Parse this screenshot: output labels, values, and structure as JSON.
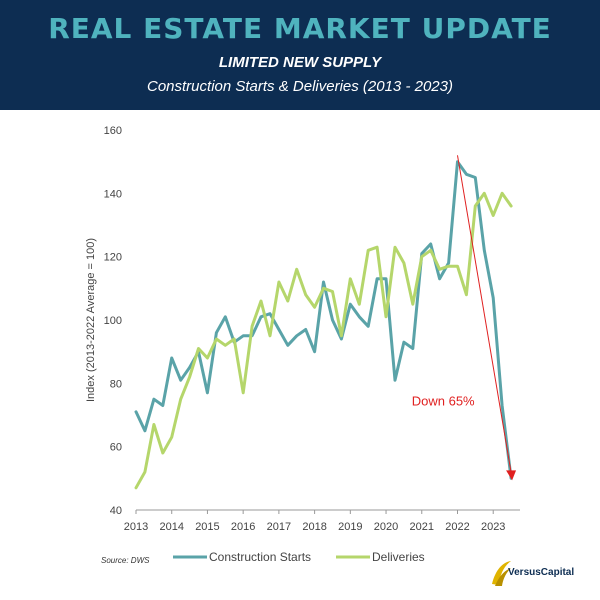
{
  "header": {
    "title": "REAL ESTATE MARKET UPDATE",
    "subtitle": "LIMITED NEW SUPPLY",
    "subtitle2": "Construction Starts & Deliveries (2013 - 2023)"
  },
  "footer": {
    "source": "Source: DWS",
    "logo_text": "VersusCapital"
  },
  "colors": {
    "header_bg": "#0d2d52",
    "title": "#4fb3be",
    "starts": "#5aa3a8",
    "deliveries": "#b5d66b",
    "arrow": "#e02020"
  },
  "chart_data": {
    "type": "line",
    "xlabel": "",
    "ylabel": "Index (2013-2022 Average = 100)",
    "ylim": [
      40,
      160
    ],
    "xlim": [
      2013,
      2023.75
    ],
    "yticks": [
      40,
      60,
      80,
      100,
      120,
      140,
      160
    ],
    "xticks": [
      2013,
      2014,
      2015,
      2016,
      2017,
      2018,
      2019,
      2020,
      2021,
      2022,
      2023
    ],
    "grid": false,
    "legend": "bottom",
    "annotation": {
      "text": "Down 65%",
      "from": [
        2022.0,
        152
      ],
      "to": [
        2023.5,
        50
      ]
    },
    "series": [
      {
        "name": "Construction Starts",
        "x": [
          2013.0,
          2013.25,
          2013.5,
          2013.75,
          2014.0,
          2014.25,
          2014.5,
          2014.75,
          2015.0,
          2015.25,
          2015.5,
          2015.75,
          2016.0,
          2016.25,
          2016.5,
          2016.75,
          2017.0,
          2017.25,
          2017.5,
          2017.75,
          2018.0,
          2018.25,
          2018.5,
          2018.75,
          2019.0,
          2019.25,
          2019.5,
          2019.75,
          2020.0,
          2020.25,
          2020.5,
          2020.75,
          2021.0,
          2021.25,
          2021.5,
          2021.75,
          2022.0,
          2022.25,
          2022.5,
          2022.75,
          2023.0,
          2023.25,
          2023.5
        ],
        "values": [
          71,
          65,
          75,
          73,
          88,
          81,
          85,
          90,
          77,
          96,
          101,
          93,
          95,
          95,
          101,
          102,
          97,
          92,
          95,
          97,
          90,
          112,
          100,
          94,
          105,
          101,
          98,
          113,
          113,
          81,
          93,
          91,
          121,
          124,
          113,
          118,
          150,
          146,
          145,
          122,
          107,
          73,
          50
        ]
      },
      {
        "name": "Deliveries",
        "x": [
          2013.0,
          2013.25,
          2013.5,
          2013.75,
          2014.0,
          2014.25,
          2014.5,
          2014.75,
          2015.0,
          2015.25,
          2015.5,
          2015.75,
          2016.0,
          2016.25,
          2016.5,
          2016.75,
          2017.0,
          2017.25,
          2017.5,
          2017.75,
          2018.0,
          2018.25,
          2018.5,
          2018.75,
          2019.0,
          2019.25,
          2019.5,
          2019.75,
          2020.0,
          2020.25,
          2020.5,
          2020.75,
          2021.0,
          2021.25,
          2021.5,
          2021.75,
          2022.0,
          2022.25,
          2022.5,
          2022.75,
          2023.0,
          2023.25,
          2023.5
        ],
        "values": [
          47,
          52,
          67,
          58,
          63,
          75,
          82,
          91,
          88,
          94,
          92,
          94,
          77,
          98,
          106,
          95,
          112,
          106,
          116,
          108,
          104,
          110,
          109,
          95,
          113,
          105,
          122,
          123,
          101,
          123,
          118,
          105,
          120,
          122,
          116,
          117,
          117,
          108,
          136,
          140,
          133,
          140,
          136
        ]
      }
    ]
  }
}
